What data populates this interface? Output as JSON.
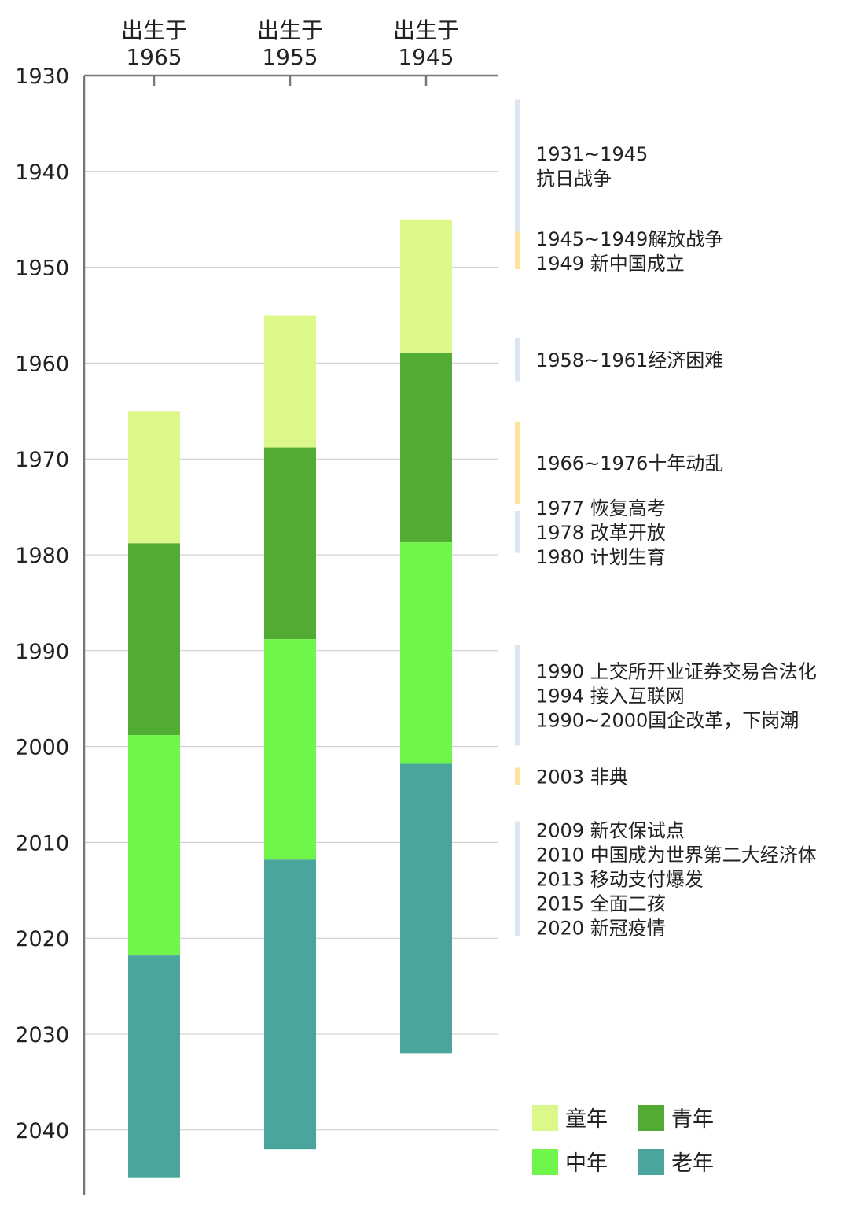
{
  "chart_data": {
    "type": "bar",
    "orientation": "vertical-timeline",
    "title": "",
    "y_axis": {
      "min": 1930,
      "max": 2045,
      "reversed": true,
      "ticks": [
        1930,
        1940,
        1950,
        1960,
        1970,
        1980,
        1990,
        2000,
        2010,
        2020,
        2030,
        2040
      ],
      "grid": true
    },
    "columns": [
      {
        "label_top": "出生于",
        "label_bottom": "1965",
        "segments": [
          {
            "stage": "童年",
            "start": 1965,
            "end": 1978.8
          },
          {
            "stage": "青年",
            "start": 1978.8,
            "end": 1998.8
          },
          {
            "stage": "中年",
            "start": 1998.8,
            "end": 2021.8
          },
          {
            "stage": "老年",
            "start": 2021.8,
            "end": 2045
          }
        ]
      },
      {
        "label_top": "出生于",
        "label_bottom": "1955",
        "segments": [
          {
            "stage": "童年",
            "start": 1955,
            "end": 1968.8
          },
          {
            "stage": "青年",
            "start": 1968.8,
            "end": 1988.8
          },
          {
            "stage": "中年",
            "start": 1988.8,
            "end": 2011.8
          },
          {
            "stage": "老年",
            "start": 2011.8,
            "end": 2042
          }
        ]
      },
      {
        "label_top": "出生于",
        "label_bottom": "1945",
        "segments": [
          {
            "stage": "童年",
            "start": 1945,
            "end": 1958.9
          },
          {
            "stage": "青年",
            "start": 1958.9,
            "end": 1978.7
          },
          {
            "stage": "中年",
            "start": 1978.7,
            "end": 2001.8
          },
          {
            "stage": "老年",
            "start": 2001.8,
            "end": 2032
          }
        ]
      }
    ],
    "events": [
      {
        "start": 1932.5,
        "end": 1946.3,
        "color": "#dce6f2",
        "lines": [
          "1931~1945",
          "抗日战争"
        ]
      },
      {
        "start": 1946.3,
        "end": 1950.2,
        "color": "#fbe3a0",
        "lines": [
          "1945~1949解放战争",
          "1949 新中国成立"
        ]
      },
      {
        "start": 1957.4,
        "end": 1961.9,
        "color": "#dce6f2",
        "lines": [
          "1958~1961经济困难"
        ]
      },
      {
        "start": 1966.1,
        "end": 1974.7,
        "color": "#fbe3a0",
        "lines": [
          "1966~1976十年动乱"
        ]
      },
      {
        "start": 1975.4,
        "end": 1979.8,
        "color": "#dce6f2",
        "lines": [
          "1977 恢复高考",
          "1978 改革开放",
          "1980 计划生育"
        ]
      },
      {
        "start": 1989.4,
        "end": 1999.9,
        "color": "#dce6f2",
        "lines": [
          "1990 上交所开业证券交易合法化",
          "1994 接入互联网",
          "1990~2000国企改革，下岗潮"
        ]
      },
      {
        "start": 2002.2,
        "end": 2004.0,
        "color": "#fbe3a0",
        "lines": [
          "2003 非典"
        ]
      },
      {
        "start": 2007.8,
        "end": 2019.8,
        "color": "#dce6f2",
        "lines": [
          "2009 新农保试点",
          "2010 中国成为世界第二大经济体",
          "2013 移动支付爆发",
          "2015 全面二孩",
          "2020 新冠疫情"
        ]
      }
    ],
    "legend": {
      "placement": "bottom-right",
      "items": [
        {
          "label": "童年",
          "color": "#ddf88a"
        },
        {
          "label": "青年",
          "color": "#52ab33"
        },
        {
          "label": "中年",
          "color": "#70f54a"
        },
        {
          "label": "老年",
          "color": "#4aa69d"
        }
      ]
    }
  }
}
